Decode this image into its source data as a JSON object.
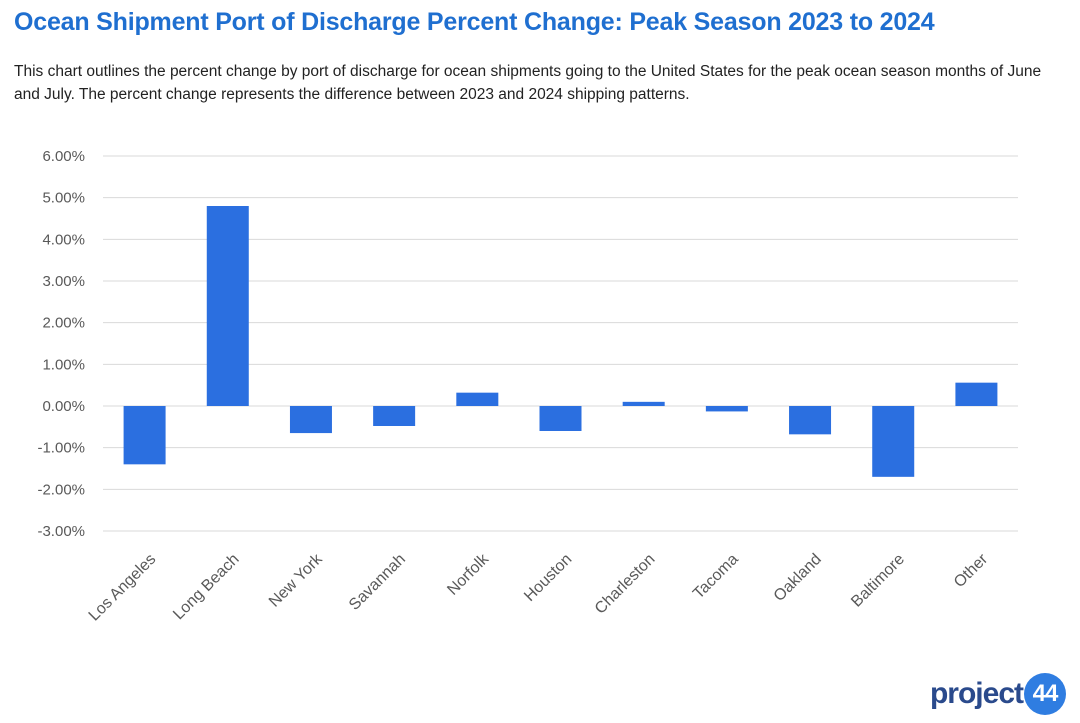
{
  "header": {
    "title": "Ocean Shipment Port of Discharge Percent Change: Peak Season 2023 to 2024",
    "subtitle": "This chart outlines the percent change by port of discharge for ocean shipments going to the United States for the peak ocean season months of June and July. The percent change represents the difference between 2023 and 2024 shipping patterns."
  },
  "brand": {
    "logo_text": "project",
    "logo_badge": "44"
  },
  "colors": {
    "bar": "#2b6fe0",
    "title": "#1f6fd0",
    "grid": "#d9d9d9",
    "axis_text": "#595959"
  },
  "chart_data": {
    "type": "bar",
    "title": "Ocean Shipment Port of Discharge Percent Change: Peak Season 2023 to 2024",
    "xlabel": "",
    "ylabel": "",
    "categories": [
      "Los Angeles",
      "Long Beach",
      "New York",
      "Savannah",
      "Norfolk",
      "Houston",
      "Charleston",
      "Tacoma",
      "Oakland",
      "Baltimore",
      "Other"
    ],
    "values": [
      -1.4,
      4.8,
      -0.65,
      -0.48,
      0.32,
      -0.6,
      0.1,
      -0.13,
      -0.68,
      -1.7,
      0.56
    ],
    "ylim": [
      -3,
      6
    ],
    "yticks": [
      6,
      5,
      4,
      3,
      2,
      1,
      0,
      -1,
      -2,
      -3
    ],
    "ytick_labels": [
      "6.00%",
      "5.00%",
      "4.00%",
      "3.00%",
      "2.00%",
      "1.00%",
      "0.00%",
      "-1.00%",
      "-2.00%",
      "-3.00%"
    ],
    "grid": true,
    "legend": "none"
  }
}
